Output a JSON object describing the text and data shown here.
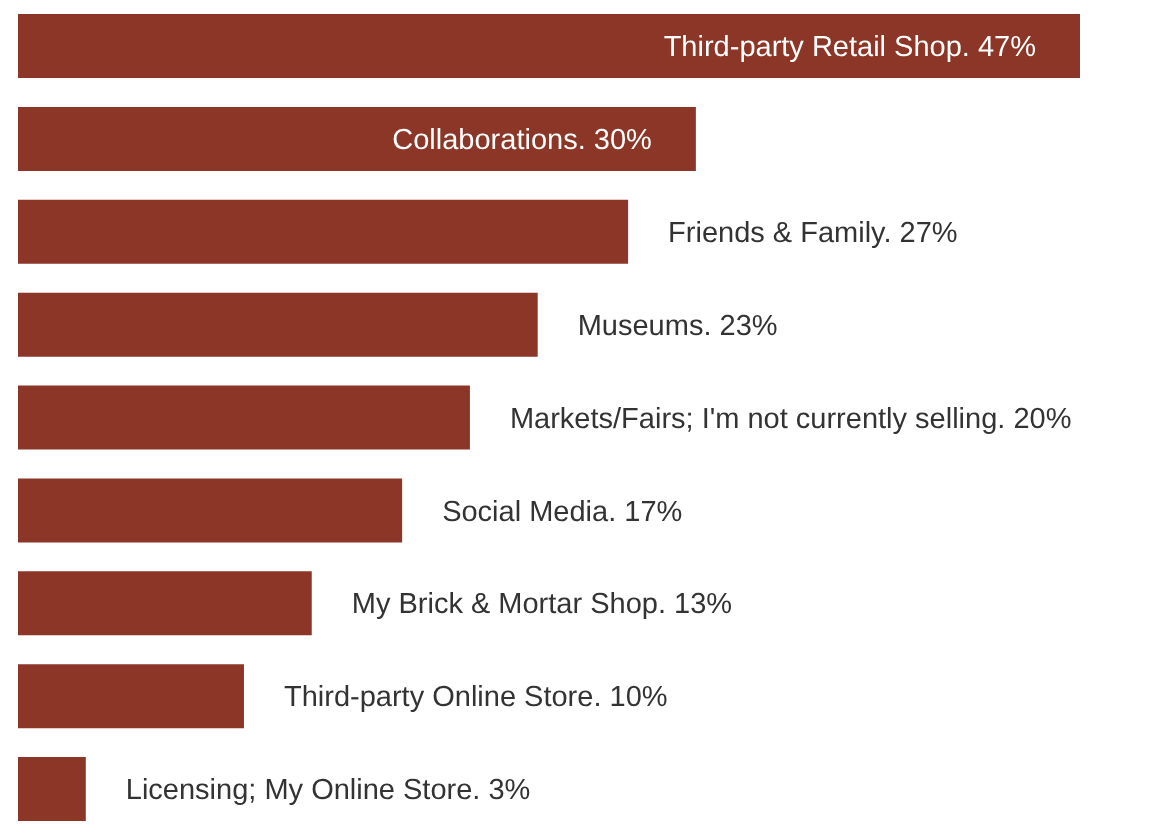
{
  "chart_data": {
    "type": "bar",
    "orientation": "horizontal",
    "categories": [
      null,
      null,
      null,
      null,
      null,
      null,
      null,
      null,
      null
    ],
    "values": [
      47,
      30,
      27,
      23,
      20,
      17,
      13,
      10,
      3
    ],
    "color": "#8b3626",
    "value_labels": [
      "Third-party Retail Shop. 47%",
      "Collaborations. 30%",
      "Friends & Family. 27%",
      "Museums. 23%",
      "Markets/Fairs; I'm not currently selling. 20%",
      "Social Media. 17%",
      "My Brick & Mortar Shop. 13%",
      "Third-party Online Store. 10%",
      "Licensing; My Online Store. 3%"
    ],
    "grid": false,
    "legend": false
  }
}
